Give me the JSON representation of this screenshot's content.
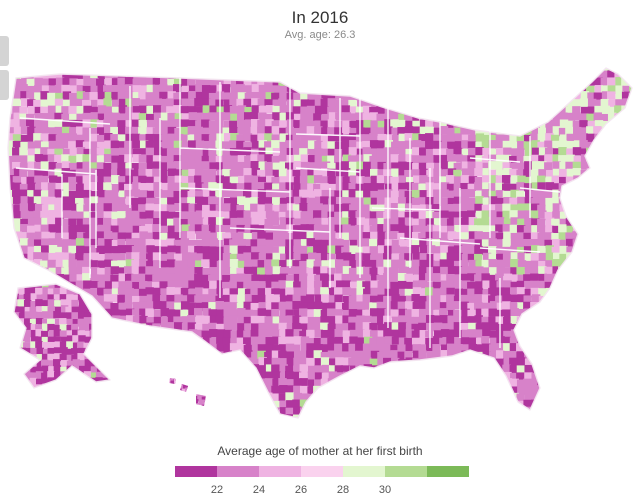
{
  "title": "In 2016",
  "subtitle": "Avg. age: 26.3",
  "legend": {
    "title": "Average age of mother at her first birth",
    "ticks": [
      "22",
      "24",
      "26",
      "28",
      "30"
    ],
    "colors": [
      "#b0359e",
      "#d782c9",
      "#efb3e2",
      "#fad2ee",
      "#e3f6d0",
      "#b4db93",
      "#7cba58"
    ]
  },
  "map": {
    "fill_weights": {
      "mid_pink": 0.46,
      "dark_pink": 0.28,
      "light_pink": 0.14,
      "light_green": 0.09,
      "green": 0.03
    }
  }
}
